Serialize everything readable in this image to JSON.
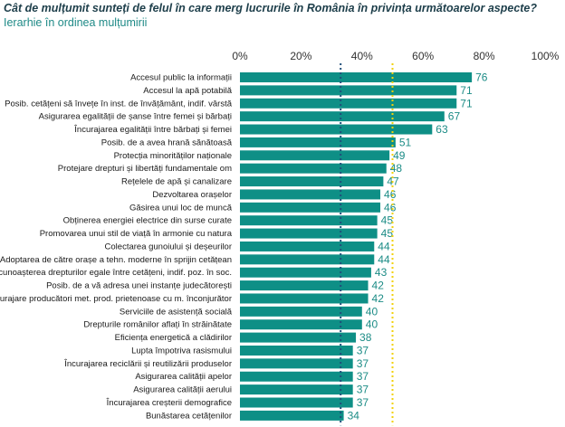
{
  "header": {
    "title": "Cât de mulțumit sunteți de felul în care merg lucrurile în România în privința următoarelor aspecte?",
    "subtitle": "Ierarhie în ordinea mulțumirii"
  },
  "colors": {
    "bar": "#0e8f86",
    "value_text": "#1c8c86",
    "ref_line_dark": "#1f4e79",
    "ref_line_yellow": "#f2d10a"
  },
  "chart_data": {
    "type": "bar",
    "orientation": "horizontal",
    "title": "Cât de mulțumit sunteți de felul în care merg lucrurile în România în privința următoarelor aspecte?",
    "subtitle": "Ierarhie în ordinea mulțumirii",
    "xlim": [
      0,
      100
    ],
    "x_ticks": [
      "0%",
      "20%",
      "40%",
      "60%",
      "80%",
      "100%"
    ],
    "x_tick_values": [
      0,
      20,
      40,
      60,
      80,
      100
    ],
    "axis_position": "top",
    "reference_lines": [
      {
        "value": 33,
        "style": "dotted",
        "color": "#1f4e79"
      },
      {
        "value": 50,
        "style": "dotted",
        "color": "#f2d10a"
      }
    ],
    "categories": [
      "Accesul public la informații",
      "Accesul la apă potabilă",
      "Posib. cetățeni să învețe în inst. de învățământ, indif. vârstă",
      "Asigurarea egalității de șanse între femei și bărbați",
      "Încurajarea egalității între bărbați și femei",
      "Posib. de a avea hrană sănătoasă",
      "Protecția minorităților naționale",
      "Protejare drepturi și libertăți fundamentale om",
      "Rețelele de apă și canalizare",
      "Dezvoltarea orașelor",
      "Găsirea unui loc de muncă",
      "Obținerea energiei electrice din surse curate",
      "Promovarea unui stil de viață în armonie cu natura",
      "Colectarea gunoiului și deșeurilor",
      "Adoptarea de către orașe a tehn. moderne în sprijin cetățean",
      "Recunoașterea drepturilor egale între cetățeni, indif. poz. în soc.",
      "Posib. de a vă adresa unei instanțe judecătorești",
      "Încurajare producători met. prod. prietenoase cu m. înconjurător",
      "Serviciile de asistență socială",
      "Drepturile românilor aflați în străinătate",
      "Eficiența energetică a clădirilor",
      "Lupta împotriva rasismului",
      "Încurajarea reciclării și reutilizării produselor",
      "Asigurarea calității apelor",
      "Asigurarea calității aerului",
      "Încurajarea creșterii demografice",
      "Bunăstarea cetățenilor"
    ],
    "values": [
      76,
      71,
      71,
      67,
      63,
      51,
      49,
      48,
      47,
      46,
      46,
      45,
      45,
      44,
      44,
      43,
      42,
      42,
      40,
      40,
      38,
      37,
      37,
      37,
      37,
      37,
      34
    ]
  }
}
